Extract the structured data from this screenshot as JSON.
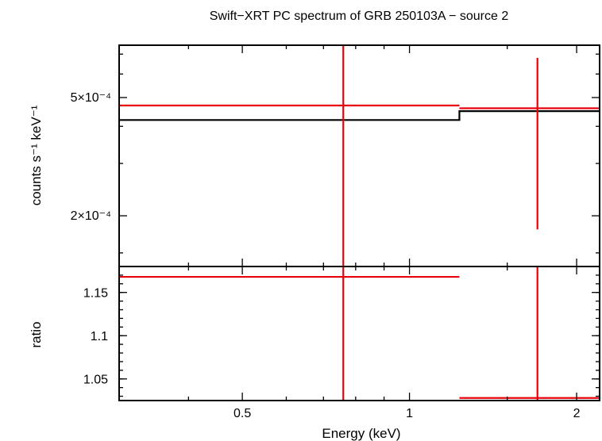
{
  "chart_data": [
    {
      "type": "line",
      "title": "Swift−XRT PC spectrum of GRB 250103A − source 2",
      "ylabel": "counts s⁻¹ keV⁻¹",
      "yscale": "log",
      "xscale": "log",
      "xlim": [
        0.3,
        2.2
      ],
      "ylim": [
        0.000135,
        0.00075
      ],
      "yticks": [
        {
          "value": 0.0005,
          "label": "5×10⁻⁴"
        },
        {
          "value": 0.0002,
          "label": "2×10⁻⁴"
        }
      ],
      "data": [
        {
          "x": 0.76,
          "xerr": [
            0.3,
            1.23
          ],
          "y": 0.00047,
          "yerr": [
            0.000135,
            0.00075
          ]
        },
        {
          "x": 1.7,
          "xerr": [
            1.23,
            2.2
          ],
          "y": 0.00046,
          "yerr": [
            0.00018,
            0.00068
          ]
        }
      ],
      "model": [
        {
          "x": [
            0.3,
            1.23
          ],
          "y": 0.00042
        },
        {
          "x": [
            1.23,
            2.2
          ],
          "y": 0.00045
        }
      ],
      "colors": {
        "data": "#e8000b",
        "model": "#000000"
      }
    },
    {
      "type": "line",
      "xlabel": "Energy (keV)",
      "ylabel": "ratio",
      "xscale": "log",
      "xlim": [
        0.3,
        2.2
      ],
      "ylim": [
        1.025,
        1.18
      ],
      "xticks": [
        {
          "value": 0.5,
          "label": "0.5"
        },
        {
          "value": 1,
          "label": "1"
        },
        {
          "value": 2,
          "label": "2"
        }
      ],
      "yticks": [
        {
          "value": 1.15,
          "label": "1.15"
        },
        {
          "value": 1.1,
          "label": "1.1"
        },
        {
          "value": 1.05,
          "label": "1.05"
        }
      ],
      "data": [
        {
          "x": 0.76,
          "xerr": [
            0.3,
            1.23
          ],
          "y": 1.168,
          "yerr": [
            1.025,
            1.18
          ]
        },
        {
          "x": 1.7,
          "xerr": [
            1.23,
            2.2
          ],
          "y": 1.028,
          "yerr": [
            1.025,
            1.18
          ]
        }
      ],
      "colors": {
        "data": "#e8000b"
      }
    }
  ]
}
